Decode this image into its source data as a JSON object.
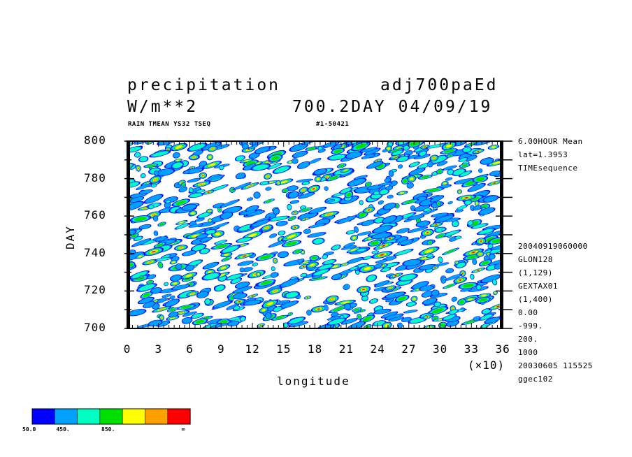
{
  "header": {
    "title_left": "precipitation",
    "title_right": "adj700paEd",
    "units": "W/m**2",
    "subtitle_right": "700.2DAY 04/09/19",
    "small_left": "RAIN TMEAN YS32 TSEQ",
    "small_right": "#1-50421"
  },
  "side_info": {
    "lines_top": [
      "6.00HOUR Mean",
      "lat=1.3953",
      "TIMEsequence"
    ],
    "lines_bottom": [
      "20040919060000",
      "GLON128",
      "(1,129)",
      "GEXTAX01",
      "(1,400)",
      "0.00",
      "-999.",
      "200.",
      "1000",
      "20030605 115525",
      "ggec102"
    ]
  },
  "colors": {
    "levels": [
      "#0000ff",
      "#00a0ff",
      "#00ffc0",
      "#00e000",
      "#ffff00",
      "#ffa000",
      "#ff0000"
    ]
  },
  "colorbar": {
    "labels": [
      "50.0",
      "450.",
      "850.",
      "∞"
    ]
  },
  "chart_data": {
    "type": "heatmap",
    "title": "precipitation",
    "xlabel": "longitude",
    "ylabel": "DAY",
    "x_multiplier": "(×10)",
    "xlim": [
      0,
      36
    ],
    "ylim": [
      700,
      800
    ],
    "x_ticks": [
      "0",
      "3",
      "6",
      "9",
      "12",
      "15",
      "18",
      "21",
      "24",
      "27",
      "30",
      "33",
      "36"
    ],
    "y_ticks": [
      "700",
      "720",
      "740",
      "760",
      "780",
      "800"
    ],
    "contour_levels": [
      50,
      250,
      450,
      650,
      850,
      1050,
      1250
    ],
    "note": "Hovmoller (longitude-time) diagram of shaded precipitation features propagating eastward"
  }
}
